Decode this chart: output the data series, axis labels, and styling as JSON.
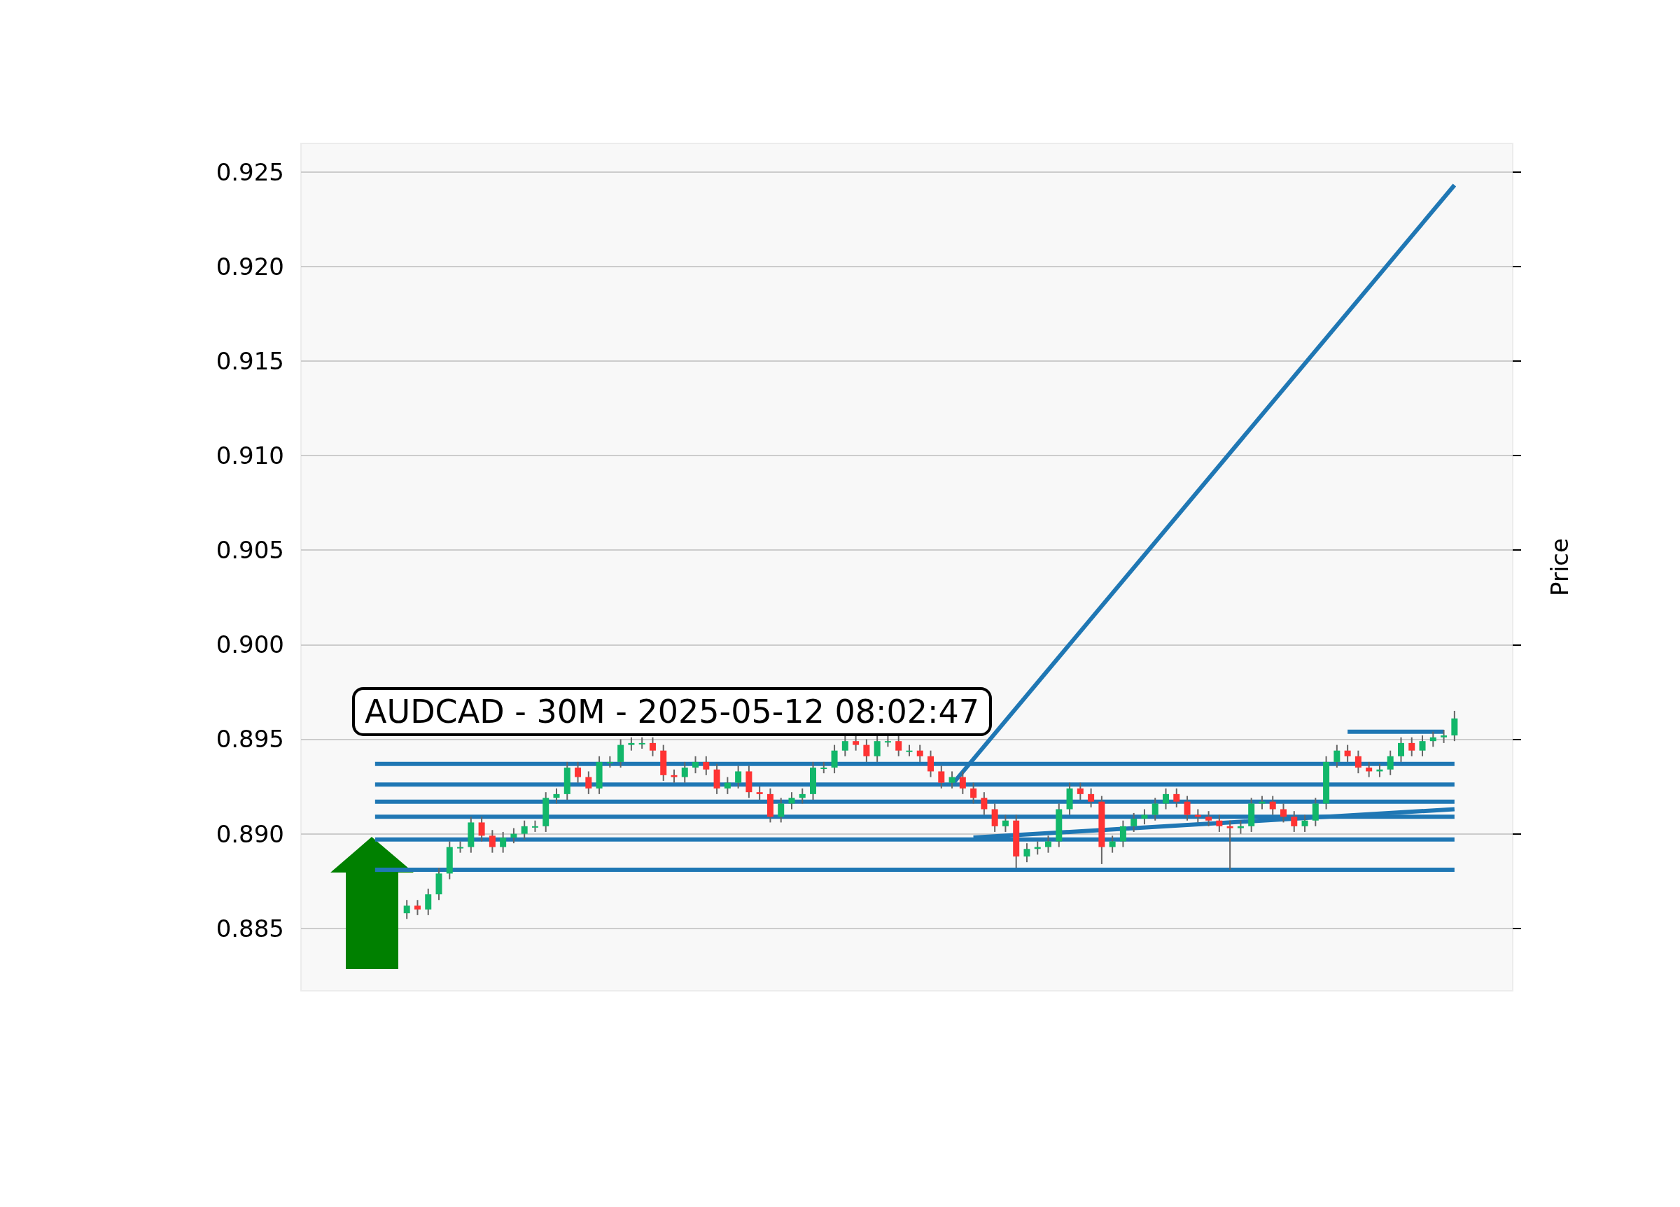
{
  "chart_data": {
    "type": "candlestick",
    "title": "AUDCAD - 30M - 2025-05-12 08:02:47",
    "ylabel": "Price",
    "ylim": [
      0.8817,
      0.9265
    ],
    "yticks": [
      0.885,
      {
        "value": 0.89,
        "label": "0.890"
      },
      0.895,
      {
        "value": 0.9,
        "label": "0.900"
      },
      0.905,
      {
        "value": 0.91,
        "label": "0.910"
      },
      0.915,
      {
        "value": 0.92,
        "label": "0.920"
      },
      0.925
    ],
    "tick_labels": "y",
    "grid": "y",
    "categories": [
      null,
      null,
      null,
      null,
      null,
      null,
      null,
      null,
      null,
      null,
      null,
      null,
      null,
      null,
      null,
      null,
      null,
      null,
      null,
      null,
      null,
      null,
      null,
      null,
      null,
      null,
      null,
      null,
      null,
      null,
      null,
      null,
      null,
      null,
      null,
      null,
      null,
      null,
      null,
      null,
      null,
      null,
      null,
      null,
      null,
      null,
      null,
      null,
      null,
      null,
      null,
      null,
      null,
      null,
      null,
      null,
      null,
      null,
      null,
      null,
      null,
      null,
      null,
      null,
      null,
      null,
      null,
      null,
      null,
      null,
      null,
      null,
      null,
      null,
      null,
      null,
      null,
      null,
      null,
      null,
      null,
      null,
      null,
      null,
      null,
      null,
      null,
      null,
      null,
      null,
      null,
      null,
      null,
      null,
      null,
      null,
      null,
      null,
      null
    ],
    "ohlc": [
      [
        0.8858,
        0.8865,
        0.8855,
        0.8862
      ],
      [
        0.8862,
        0.8865,
        0.8857,
        0.886
      ],
      [
        0.886,
        0.8871,
        0.8857,
        0.8868
      ],
      [
        0.8868,
        0.8882,
        0.8865,
        0.8879
      ],
      [
        0.8879,
        0.8896,
        0.8876,
        0.8893
      ],
      [
        0.8893,
        0.8896,
        0.889,
        0.8893
      ],
      [
        0.8893,
        0.8909,
        0.889,
        0.8906
      ],
      [
        0.8906,
        0.8909,
        0.8896,
        0.8899
      ],
      [
        0.8899,
        0.8902,
        0.889,
        0.8893
      ],
      [
        0.8893,
        0.8901,
        0.889,
        0.8898
      ],
      [
        0.8898,
        0.8903,
        0.8895,
        0.89
      ],
      [
        0.89,
        0.8907,
        0.8897,
        0.8904
      ],
      [
        0.8904,
        0.8907,
        0.8901,
        0.8904
      ],
      [
        0.8904,
        0.8922,
        0.8901,
        0.8919
      ],
      [
        0.8919,
        0.8924,
        0.8916,
        0.8921
      ],
      [
        0.8921,
        0.8938,
        0.8918,
        0.8935
      ],
      [
        0.8935,
        0.8938,
        0.8927,
        0.893
      ],
      [
        0.893,
        0.8933,
        0.8921,
        0.8924
      ],
      [
        0.8924,
        0.8941,
        0.8921,
        0.8938
      ],
      [
        0.8938,
        0.8941,
        0.8935,
        0.8938
      ],
      [
        0.8938,
        0.895,
        0.8935,
        0.8947
      ],
      [
        0.8947,
        0.8951,
        0.8944,
        0.8948
      ],
      [
        0.8948,
        0.8951,
        0.8945,
        0.8948
      ],
      [
        0.8948,
        0.8951,
        0.8941,
        0.8944
      ],
      [
        0.8944,
        0.8947,
        0.8928,
        0.8931
      ],
      [
        0.8931,
        0.8934,
        0.8927,
        0.893
      ],
      [
        0.893,
        0.8938,
        0.8927,
        0.8935
      ],
      [
        0.8935,
        0.8941,
        0.8932,
        0.8938
      ],
      [
        0.8938,
        0.8941,
        0.8931,
        0.8934
      ],
      [
        0.8934,
        0.8937,
        0.8921,
        0.8924
      ],
      [
        0.8924,
        0.893,
        0.8921,
        0.8927
      ],
      [
        0.8927,
        0.8936,
        0.8924,
        0.8933
      ],
      [
        0.8933,
        0.8936,
        0.8919,
        0.8922
      ],
      [
        0.8922,
        0.8925,
        0.8918,
        0.8921
      ],
      [
        0.8921,
        0.8924,
        0.8906,
        0.8909
      ],
      [
        0.8909,
        0.8919,
        0.8906,
        0.8916
      ],
      [
        0.8916,
        0.8922,
        0.8913,
        0.8919
      ],
      [
        0.8919,
        0.8924,
        0.8916,
        0.8921
      ],
      [
        0.8921,
        0.8938,
        0.8918,
        0.8935
      ],
      [
        0.8935,
        0.8938,
        0.8932,
        0.8935
      ],
      [
        0.8935,
        0.8947,
        0.8932,
        0.8944
      ],
      [
        0.8944,
        0.8952,
        0.8941,
        0.8949
      ],
      [
        0.8949,
        0.8952,
        0.8944,
        0.8947
      ],
      [
        0.8947,
        0.895,
        0.8938,
        0.8941
      ],
      [
        0.8941,
        0.8952,
        0.8938,
        0.8949
      ],
      [
        0.8949,
        0.8952,
        0.8946,
        0.8949
      ],
      [
        0.8949,
        0.8952,
        0.8941,
        0.8944
      ],
      [
        0.8944,
        0.8947,
        0.8941,
        0.8944
      ],
      [
        0.8944,
        0.8947,
        0.8938,
        0.8941
      ],
      [
        0.8941,
        0.8944,
        0.893,
        0.8933
      ],
      [
        0.8933,
        0.8936,
        0.8924,
        0.8927
      ],
      [
        0.8927,
        0.8933,
        0.8924,
        0.893
      ],
      [
        0.893,
        0.8933,
        0.8921,
        0.8924
      ],
      [
        0.8924,
        0.8927,
        0.8916,
        0.8919
      ],
      [
        0.8919,
        0.8922,
        0.891,
        0.8913
      ],
      [
        0.8913,
        0.8916,
        0.8901,
        0.8904
      ],
      [
        0.8904,
        0.891,
        0.8901,
        0.8907
      ],
      [
        0.8907,
        0.891,
        0.8882,
        0.8888
      ],
      [
        0.8888,
        0.8895,
        0.8885,
        0.8892
      ],
      [
        0.8892,
        0.8896,
        0.8889,
        0.8893
      ],
      [
        0.8893,
        0.8899,
        0.889,
        0.8896
      ],
      [
        0.8896,
        0.8916,
        0.8893,
        0.8913
      ],
      [
        0.8913,
        0.8927,
        0.891,
        0.8924
      ],
      [
        0.8924,
        0.8927,
        0.8918,
        0.8921
      ],
      [
        0.8921,
        0.8924,
        0.8914,
        0.8917
      ],
      [
        0.8917,
        0.892,
        0.8884,
        0.8893
      ],
      [
        0.8893,
        0.8899,
        0.889,
        0.8896
      ],
      [
        0.8896,
        0.8907,
        0.8893,
        0.8904
      ],
      [
        0.8904,
        0.8911,
        0.8901,
        0.8908
      ],
      [
        0.8908,
        0.8913,
        0.8905,
        0.891
      ],
      [
        0.891,
        0.8919,
        0.8907,
        0.8916
      ],
      [
        0.8916,
        0.8924,
        0.8913,
        0.8921
      ],
      [
        0.8921,
        0.8924,
        0.8914,
        0.8917
      ],
      [
        0.8917,
        0.892,
        0.8907,
        0.891
      ],
      [
        0.891,
        0.8913,
        0.8906,
        0.8909
      ],
      [
        0.8909,
        0.8912,
        0.8904,
        0.8907
      ],
      [
        0.8907,
        0.891,
        0.8901,
        0.8904
      ],
      [
        0.8904,
        0.8907,
        0.8881,
        0.8903
      ],
      [
        0.8903,
        0.8907,
        0.89,
        0.8904
      ],
      [
        0.8904,
        0.8919,
        0.8901,
        0.8916
      ],
      [
        0.8916,
        0.892,
        0.8913,
        0.8917
      ],
      [
        0.8917,
        0.892,
        0.891,
        0.8913
      ],
      [
        0.8913,
        0.8916,
        0.8906,
        0.8909
      ],
      [
        0.8909,
        0.8912,
        0.8901,
        0.8904
      ],
      [
        0.8904,
        0.891,
        0.8901,
        0.8907
      ],
      [
        0.8907,
        0.8919,
        0.8904,
        0.8916
      ],
      [
        0.8916,
        0.8941,
        0.8913,
        0.8938
      ],
      [
        0.8938,
        0.8947,
        0.8935,
        0.8944
      ],
      [
        0.8944,
        0.8947,
        0.8938,
        0.8941
      ],
      [
        0.8941,
        0.8944,
        0.8932,
        0.8935
      ],
      [
        0.8935,
        0.8938,
        0.893,
        0.8933
      ],
      [
        0.8933,
        0.8937,
        0.893,
        0.8934
      ],
      [
        0.8934,
        0.8944,
        0.8931,
        0.8941
      ],
      [
        0.8941,
        0.8951,
        0.8938,
        0.8948
      ],
      [
        0.8948,
        0.8951,
        0.8941,
        0.8944
      ],
      [
        0.8944,
        0.8952,
        0.8941,
        0.8949
      ],
      [
        0.8949,
        0.8954,
        0.8946,
        0.8951
      ],
      [
        0.8951,
        0.8955,
        0.8948,
        0.8952
      ],
      [
        0.8952,
        0.8965,
        0.8949,
        0.8961
      ]
    ],
    "ref_lines": [
      {
        "axis": "y",
        "value": 0.8937,
        "color": "#1f77b4"
      },
      {
        "axis": "y",
        "value": 0.8926,
        "color": "#1f77b4"
      },
      {
        "axis": "y",
        "value": 0.8917,
        "color": "#1f77b4"
      },
      {
        "axis": "y",
        "value": 0.8909,
        "color": "#1f77b4"
      },
      {
        "axis": "y",
        "value": 0.8897,
        "color": "#1f77b4"
      },
      {
        "axis": "y",
        "value": 0.8881,
        "color": "#1f77b4"
      }
    ],
    "series": [
      {
        "type": "line",
        "color": "#1f77b4",
        "values": [
          null,
          null,
          null,
          null,
          null,
          null,
          null,
          null,
          null,
          null,
          null,
          null,
          null,
          null,
          null,
          null,
          null,
          null,
          null,
          null,
          null,
          null,
          null,
          null,
          null,
          null,
          null,
          null,
          null,
          null,
          null,
          null,
          null,
          null,
          null,
          null,
          null,
          null,
          null,
          null,
          null,
          null,
          null,
          null,
          null,
          null,
          null,
          null,
          null,
          null,
          null,
          null,
          null,
          null,
          null,
          null,
          null,
          null,
          null,
          null,
          null,
          null,
          null,
          null,
          null,
          null,
          null,
          null,
          null,
          null,
          null,
          null,
          null,
          null,
          null,
          null,
          null,
          null,
          null,
          null,
          null,
          null,
          null,
          null,
          null,
          null,
          null,
          null,
          0.8954,
          null,
          null,
          null,
          null,
          null,
          null,
          null,
          null,
          0.8954,
          null
        ]
      },
      {
        "type": "line",
        "color": "#1f77b4",
        "values": [
          null,
          null,
          null,
          null,
          null,
          null,
          null,
          null,
          null,
          null,
          null,
          null,
          null,
          null,
          null,
          null,
          null,
          null,
          null,
          null,
          null,
          null,
          null,
          null,
          null,
          null,
          null,
          null,
          null,
          null,
          null,
          null,
          null,
          null,
          null,
          null,
          null,
          null,
          null,
          null,
          null,
          null,
          null,
          null,
          null,
          null,
          null,
          null,
          null,
          null,
          null,
          0.8926,
          null,
          null,
          null,
          null,
          null,
          null,
          null,
          null,
          null,
          null,
          null,
          null,
          null,
          null,
          null,
          null,
          null,
          null,
          null,
          null,
          null,
          null,
          null,
          null,
          null,
          null,
          null,
          null,
          null,
          null,
          null,
          null,
          null,
          null,
          null,
          null,
          null,
          null,
          null,
          null,
          null,
          null,
          null,
          null,
          null,
          null,
          0.9243
        ]
      },
      {
        "type": "line",
        "color": "#1f77b4",
        "values": [
          null,
          null,
          null,
          null,
          null,
          null,
          null,
          null,
          null,
          null,
          null,
          null,
          null,
          null,
          null,
          null,
          null,
          null,
          null,
          null,
          null,
          null,
          null,
          null,
          null,
          null,
          null,
          null,
          null,
          null,
          null,
          null,
          null,
          null,
          null,
          null,
          null,
          null,
          null,
          null,
          null,
          null,
          null,
          null,
          null,
          null,
          null,
          null,
          null,
          null,
          null,
          null,
          null,
          0.8898,
          null,
          null,
          null,
          null,
          null,
          null,
          null,
          null,
          null,
          null,
          null,
          null,
          null,
          null,
          null,
          null,
          null,
          null,
          null,
          null,
          null,
          null,
          null,
          null,
          null,
          null,
          null,
          null,
          null,
          null,
          null,
          null,
          null,
          null,
          null,
          null,
          null,
          null,
          null,
          null,
          null,
          null,
          null,
          null,
          0.8913
        ]
      }
    ]
  }
}
